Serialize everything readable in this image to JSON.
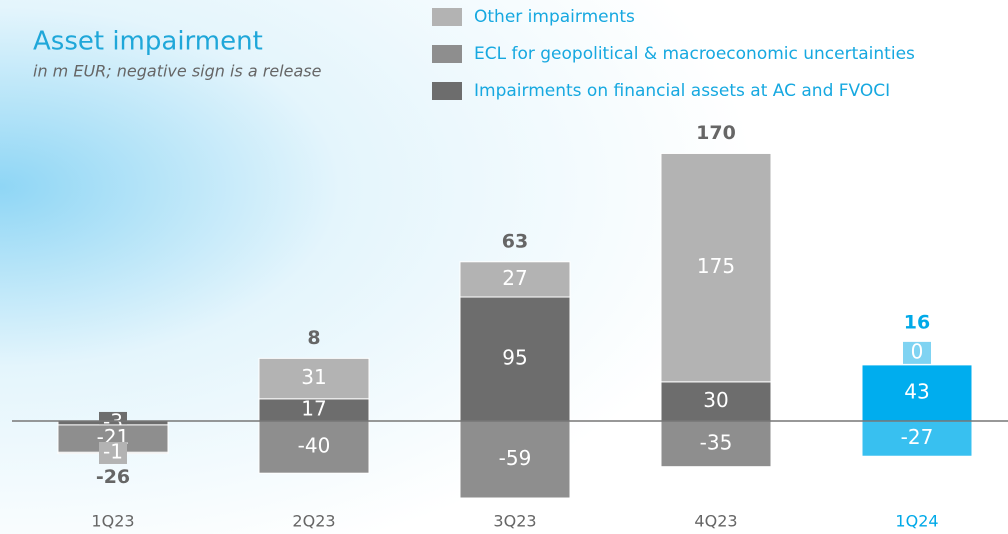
{
  "chart_data": {
    "type": "bar",
    "stacked": true,
    "title": "Asset impairment",
    "subtitle": "in m EUR; negative sign is a release",
    "categories": [
      "1Q23",
      "2Q23",
      "3Q23",
      "4Q23",
      "1Q24"
    ],
    "series": [
      {
        "name": "Other impairments",
        "color": "#b3b3b3",
        "colors": [
          "#b3b3b3",
          "#b3b3b3",
          "#b3b3b3",
          "#b3b3b3",
          "#7fd3f2"
        ],
        "values": [
          -1,
          31,
          27,
          175,
          0
        ]
      },
      {
        "name": "ECL for geopolitical & macroeconomic uncertainties",
        "color": "#8e8e8e",
        "colors": [
          "#8e8e8e",
          "#8e8e8e",
          "#8e8e8e",
          "#8e8e8e",
          "#38c0f0"
        ],
        "values": [
          -21,
          -40,
          -59,
          -35,
          -27
        ]
      },
      {
        "name": "Impairments on financial assets at AC and FVOCI",
        "color": "#6d6d6d",
        "colors": [
          "#6d6d6d",
          "#6d6d6d",
          "#6d6d6d",
          "#6d6d6d",
          "#00adee"
        ],
        "values": [
          -3,
          17,
          95,
          30,
          43
        ]
      }
    ],
    "totals": [
      -26,
      8,
      63,
      170,
      16
    ],
    "label_colors": [
      "#666666",
      "#666666",
      "#666666",
      "#666666",
      "#00a9e8"
    ],
    "legend_text_color": "#16a8e0"
  }
}
